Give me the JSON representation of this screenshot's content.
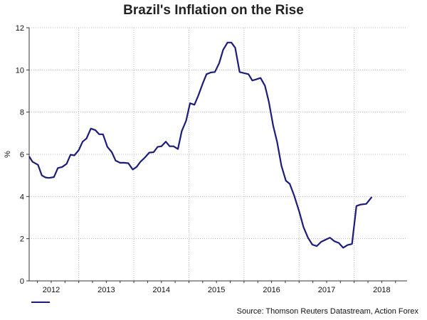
{
  "colors": {
    "series": "#1c1c7a",
    "grid": "#b8b8b8",
    "axis": "#333333"
  },
  "chart_data": {
    "type": "line",
    "title": "Brazil's Inflation on the Rise",
    "xlabel": "",
    "ylabel": "%",
    "ylim": [
      0,
      12
    ],
    "xlim": [
      2011.6,
      2018.46
    ],
    "yticks": [
      0,
      2,
      4,
      6,
      8,
      10,
      12
    ],
    "xtick_labels": [
      {
        "label": "2012",
        "at": 2012.0
      },
      {
        "label": "2013",
        "at": 2013.0
      },
      {
        "label": "2014",
        "at": 2014.0
      },
      {
        "label": "2015",
        "at": 2015.0
      },
      {
        "label": "2016",
        "at": 2016.0
      },
      {
        "label": "2017",
        "at": 2017.0
      },
      {
        "label": "2018",
        "at": 2018.0
      }
    ],
    "xgrid_years": [
      2012.5,
      2013.5,
      2014.5,
      2015.5,
      2016.5,
      2017.5
    ],
    "grid": true,
    "legend": "bottom-left",
    "series": [
      {
        "name": "",
        "points": [
          [
            2011.6,
            5.9
          ],
          [
            2011.66,
            5.65
          ],
          [
            2011.76,
            5.5
          ],
          [
            2011.83,
            5.0
          ],
          [
            2011.9,
            4.9
          ],
          [
            2011.96,
            4.88
          ],
          [
            2012.05,
            4.92
          ],
          [
            2012.12,
            5.35
          ],
          [
            2012.2,
            5.4
          ],
          [
            2012.28,
            5.55
          ],
          [
            2012.35,
            5.98
          ],
          [
            2012.42,
            5.95
          ],
          [
            2012.5,
            6.2
          ],
          [
            2012.57,
            6.6
          ],
          [
            2012.64,
            6.75
          ],
          [
            2012.72,
            7.22
          ],
          [
            2012.8,
            7.15
          ],
          [
            2012.87,
            6.95
          ],
          [
            2012.94,
            6.95
          ],
          [
            2013.02,
            6.35
          ],
          [
            2013.1,
            6.1
          ],
          [
            2013.17,
            5.7
          ],
          [
            2013.25,
            5.6
          ],
          [
            2013.32,
            5.6
          ],
          [
            2013.4,
            5.58
          ],
          [
            2013.48,
            5.28
          ],
          [
            2013.55,
            5.4
          ],
          [
            2013.62,
            5.65
          ],
          [
            2013.7,
            5.85
          ],
          [
            2013.78,
            6.08
          ],
          [
            2013.86,
            6.1
          ],
          [
            2013.93,
            6.35
          ],
          [
            2014.0,
            6.38
          ],
          [
            2014.08,
            6.6
          ],
          [
            2014.15,
            6.38
          ],
          [
            2014.22,
            6.38
          ],
          [
            2014.3,
            6.25
          ],
          [
            2014.37,
            7.1
          ],
          [
            2014.45,
            7.6
          ],
          [
            2014.52,
            8.42
          ],
          [
            2014.6,
            8.35
          ],
          [
            2014.67,
            8.78
          ],
          [
            2014.75,
            9.35
          ],
          [
            2014.82,
            9.8
          ],
          [
            2014.9,
            9.88
          ],
          [
            2014.97,
            9.9
          ],
          [
            2015.05,
            10.32
          ],
          [
            2015.12,
            10.95
          ],
          [
            2015.2,
            11.3
          ],
          [
            2015.27,
            11.3
          ],
          [
            2015.34,
            11.05
          ],
          [
            2015.42,
            9.9
          ],
          [
            2015.5,
            9.85
          ],
          [
            2015.58,
            9.8
          ],
          [
            2015.65,
            9.5
          ],
          [
            2015.72,
            9.55
          ],
          [
            2015.8,
            9.62
          ],
          [
            2015.88,
            9.25
          ],
          [
            2015.95,
            8.5
          ],
          [
            2016.03,
            7.35
          ],
          [
            2016.1,
            6.6
          ],
          [
            2016.18,
            5.45
          ],
          [
            2016.26,
            4.75
          ],
          [
            2016.33,
            4.6
          ],
          [
            2016.41,
            4.05
          ],
          [
            2016.5,
            3.3
          ],
          [
            2016.58,
            2.55
          ],
          [
            2016.66,
            2.05
          ],
          [
            2016.74,
            1.72
          ],
          [
            2016.82,
            1.65
          ],
          [
            2016.9,
            1.85
          ],
          [
            2016.98,
            1.95
          ],
          [
            2017.06,
            2.05
          ],
          [
            2017.14,
            1.88
          ],
          [
            2017.22,
            1.8
          ],
          [
            2017.3,
            1.57
          ],
          [
            2017.38,
            1.7
          ],
          [
            2017.46,
            1.75
          ],
          [
            2017.54,
            3.55
          ],
          [
            2017.62,
            3.62
          ],
          [
            2017.72,
            3.65
          ],
          [
            2017.82,
            3.98
          ]
        ]
      }
    ]
  },
  "source": "Source: Thomson Reuters Datastream, Action Forex"
}
